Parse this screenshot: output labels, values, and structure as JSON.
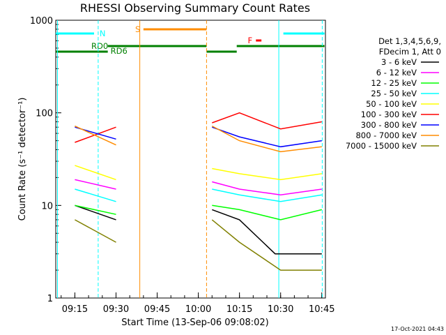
{
  "chart_data": {
    "type": "line",
    "title": "RHESSI Observing Summary Count Rates",
    "xlabel": "Start Time (13-Sep-06 09:08:02)",
    "ylabel": "Count Rate (s⁻¹ detector⁻¹)",
    "yscale": "log",
    "ylim": [
      1,
      1000
    ],
    "xlim": [
      "09:08:02",
      "10:46:20"
    ],
    "x_ticks": [
      "09:15",
      "09:30",
      "09:45",
      "10:00",
      "10:15",
      "10:30",
      "10:45"
    ],
    "y_ticks": [
      "1",
      "10",
      "100",
      "1000"
    ],
    "legend_header": [
      "Det 1,3,4,5,6,9,",
      "FDecim 1, Att 0"
    ],
    "legend_position": "right",
    "timestamp": "17-Oct-2021 04:43",
    "data_gap": [
      "09:39",
      "10:03"
    ],
    "series": [
      {
        "name": "3 - 6 keV",
        "color": "#000000",
        "values": [
          [
            9.15,
            10
          ],
          [
            9.3,
            7
          ],
          [
            10.05,
            9
          ],
          [
            10.15,
            7
          ],
          [
            10.28,
            3
          ],
          [
            10.45,
            3
          ]
        ]
      },
      {
        "name": "6 - 12 keV",
        "color": "#ff00ff",
        "values": [
          [
            9.15,
            19
          ],
          [
            9.3,
            15
          ],
          [
            10.05,
            18
          ],
          [
            10.15,
            15
          ],
          [
            10.3,
            13
          ],
          [
            10.45,
            15
          ]
        ]
      },
      {
        "name": "12 - 25 keV",
        "color": "#00ff00",
        "values": [
          [
            9.15,
            10
          ],
          [
            9.3,
            8
          ],
          [
            10.05,
            10
          ],
          [
            10.15,
            9
          ],
          [
            10.3,
            7
          ],
          [
            10.45,
            9
          ]
        ]
      },
      {
        "name": "25 - 50 keV",
        "color": "#00ffff",
        "values": [
          [
            9.15,
            15
          ],
          [
            9.3,
            11
          ],
          [
            10.05,
            15
          ],
          [
            10.15,
            13
          ],
          [
            10.3,
            11
          ],
          [
            10.45,
            13
          ]
        ]
      },
      {
        "name": "50 - 100 keV",
        "color": "#ffff00",
        "values": [
          [
            9.15,
            27
          ],
          [
            9.3,
            19
          ],
          [
            10.05,
            25
          ],
          [
            10.15,
            22
          ],
          [
            10.3,
            19
          ],
          [
            10.45,
            22
          ]
        ]
      },
      {
        "name": "100 - 300 keV",
        "color": "#ff0000",
        "values": [
          [
            9.15,
            48
          ],
          [
            9.3,
            70
          ],
          [
            10.05,
            78
          ],
          [
            10.15,
            100
          ],
          [
            10.3,
            67
          ],
          [
            10.45,
            80
          ]
        ]
      },
      {
        "name": "300 - 800 keV",
        "color": "#0000ff",
        "values": [
          [
            9.15,
            70
          ],
          [
            9.3,
            52
          ],
          [
            10.05,
            70
          ],
          [
            10.15,
            55
          ],
          [
            10.3,
            43
          ],
          [
            10.45,
            50
          ]
        ]
      },
      {
        "name": "800 - 7000 keV",
        "color": "#ff8c00",
        "values": [
          [
            9.15,
            72
          ],
          [
            9.3,
            45
          ],
          [
            10.05,
            72
          ],
          [
            10.15,
            50
          ],
          [
            10.3,
            38
          ],
          [
            10.45,
            43
          ]
        ]
      },
      {
        "name": "7000 - 15000 keV",
        "color": "#808000",
        "values": [
          [
            9.15,
            7
          ],
          [
            9.3,
            4
          ],
          [
            10.05,
            7
          ],
          [
            10.15,
            4
          ],
          [
            10.3,
            2
          ],
          [
            10.45,
            2
          ]
        ]
      }
    ],
    "flag_labels": [
      "N",
      "S",
      "RD0",
      "RD6",
      "F"
    ]
  }
}
